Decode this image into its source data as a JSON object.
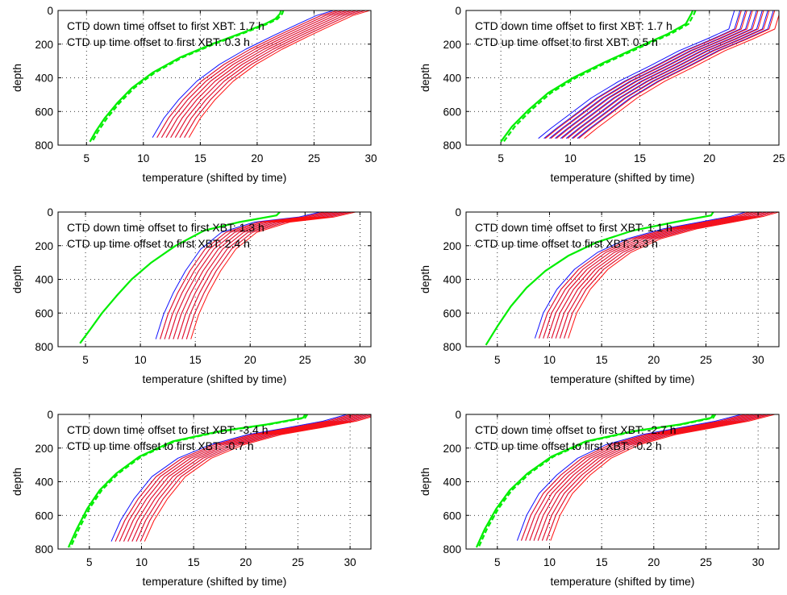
{
  "chart_data": [
    {
      "type": "line",
      "xlabel": "temperature (shifted by time)",
      "ylabel": "depth",
      "xlim": [
        2.5,
        30
      ],
      "ylim": [
        0,
        800
      ],
      "y_direction": "down",
      "xticks": [
        "5",
        "10",
        "15",
        "20",
        "25",
        "30"
      ],
      "yticks": [
        "0",
        "200",
        "400",
        "600",
        "800"
      ],
      "grid": true,
      "annotations": [
        "CTD down time offset to first XBT:    1.7 h",
        "CTD up time offset to first XBT:    0.3 h"
      ],
      "series": [
        {
          "color": "#00ee00",
          "style": "solid",
          "x": [
            22.1,
            22.0,
            21.6,
            20.7,
            18.8,
            16.0,
            13.2,
            10.8,
            9.0,
            7.7,
            6.6,
            5.8,
            5.3
          ],
          "y": [
            0,
            20,
            50,
            80,
            130,
            200,
            280,
            370,
            460,
            550,
            640,
            720,
            780
          ]
        },
        {
          "color": "#00ee00",
          "style": "dashed",
          "x": [
            22.3,
            22.2,
            21.8,
            20.9,
            19.0,
            16.2,
            13.4,
            11.0,
            9.2,
            7.9,
            6.8,
            6.0,
            5.5
          ],
          "y": [
            0,
            20,
            50,
            80,
            130,
            200,
            280,
            370,
            460,
            550,
            640,
            720,
            780
          ]
        },
        {
          "color": "#1010ff",
          "style": "solid",
          "x": [
            28.3,
            26.8,
            25.2,
            23.0,
            20.6,
            18.3,
            16.3,
            14.7,
            13.4,
            12.4
          ],
          "y": [
            0,
            30,
            80,
            150,
            230,
            320,
            420,
            530,
            640,
            755
          ]
        },
        {
          "color": "#ff1010",
          "style": "solid",
          "x": [
            28.7,
            27.2,
            25.6,
            23.4,
            21.0,
            18.7,
            16.7,
            15.1,
            13.8,
            12.8
          ],
          "y": [
            0,
            30,
            80,
            150,
            230,
            320,
            420,
            530,
            640,
            755
          ]
        }
      ]
    },
    {
      "type": "line",
      "xlabel": "temperature (shifted by time)",
      "ylabel": "depth",
      "xlim": [
        2.5,
        25
      ],
      "ylim": [
        0,
        800
      ],
      "y_direction": "down",
      "xticks": [
        "5",
        "10",
        "15",
        "20",
        "25"
      ],
      "yticks": [
        "0",
        "200",
        "400",
        "600",
        "800"
      ],
      "grid": true,
      "annotations": [
        "CTD down time offset to first XBT:    1.7 h",
        "CTD up time offset to first XBT:    0.5 h"
      ],
      "series": [
        {
          "color": "#00ee00",
          "style": "solid",
          "x": [
            18.8,
            18.7,
            18.3,
            17.0,
            14.8,
            12.4,
            10.2,
            8.4,
            7.0,
            5.8,
            5.0
          ],
          "y": [
            0,
            20,
            80,
            140,
            220,
            310,
            400,
            490,
            590,
            690,
            780
          ]
        },
        {
          "color": "#00ee00",
          "style": "dashed",
          "x": [
            19.0,
            18.9,
            18.5,
            17.2,
            15.0,
            12.6,
            10.4,
            8.6,
            7.2,
            6.0,
            5.2
          ],
          "y": [
            0,
            20,
            80,
            140,
            220,
            310,
            400,
            490,
            590,
            690,
            780
          ]
        },
        {
          "color": "#1010ff",
          "style": "solid",
          "x": [
            23.4,
            23.0,
            21.4,
            19.4,
            17.3,
            15.1,
            13.1,
            11.5,
            10.2,
            9.3
          ],
          "y": [
            0,
            110,
            170,
            240,
            330,
            420,
            520,
            620,
            700,
            760
          ]
        },
        {
          "color": "#ff1010",
          "style": "solid",
          "x": [
            23.9,
            23.5,
            21.9,
            19.9,
            17.8,
            15.6,
            13.6,
            12.0,
            10.7,
            9.8
          ],
          "y": [
            0,
            110,
            170,
            240,
            330,
            420,
            520,
            620,
            700,
            760
          ]
        }
      ]
    },
    {
      "type": "line",
      "xlabel": "temperature (shifted by time)",
      "ylabel": "depth",
      "xlim": [
        2.5,
        31
      ],
      "ylim": [
        0,
        800
      ],
      "y_direction": "down",
      "xticks": [
        "5",
        "10",
        "15",
        "20",
        "25",
        "30"
      ],
      "yticks": [
        "0",
        "200",
        "400",
        "600",
        "800"
      ],
      "grid": true,
      "annotations": [
        "CTD down time offset to first XBT:    1.3 h",
        "CTD up time offset to first XBT:    2.4 h"
      ],
      "series": [
        {
          "color": "#00ee00",
          "style": "solid",
          "x": [
            22.7,
            22.4,
            19.0,
            15.8,
            13.2,
            11.0,
            9.2,
            7.8,
            6.5,
            5.4,
            4.5
          ],
          "y": [
            0,
            20,
            60,
            110,
            200,
            300,
            400,
            500,
            600,
            700,
            780
          ]
        },
        {
          "color": "#1010ff",
          "style": "solid",
          "x": [
            28.0,
            26.0,
            22.0,
            19.0,
            17.1,
            15.7,
            14.6,
            13.7,
            13.0
          ],
          "y": [
            0,
            30,
            60,
            120,
            220,
            350,
            480,
            610,
            755
          ]
        },
        {
          "color": "#ff1010",
          "style": "solid",
          "x": [
            28.4,
            26.4,
            22.4,
            19.4,
            17.5,
            16.1,
            15.0,
            14.1,
            13.4
          ],
          "y": [
            0,
            30,
            60,
            120,
            220,
            350,
            480,
            610,
            755
          ]
        }
      ]
    },
    {
      "type": "line",
      "xlabel": "temperature (shifted by time)",
      "ylabel": "depth",
      "xlim": [
        2,
        32
      ],
      "ylim": [
        0,
        800
      ],
      "y_direction": "down",
      "xticks": [
        "5",
        "10",
        "15",
        "20",
        "25",
        "30"
      ],
      "yticks": [
        "0",
        "200",
        "400",
        "600",
        "800"
      ],
      "grid": true,
      "annotations": [
        "CTD down time offset to first XBT:    1.1 h",
        "CTD up time offset to first XBT:    2.3 h"
      ],
      "series": [
        {
          "color": "#00ee00",
          "style": "solid",
          "x": [
            25.7,
            25.5,
            22.0,
            18.0,
            14.5,
            11.8,
            9.6,
            7.8,
            6.3,
            5.0,
            3.9
          ],
          "y": [
            0,
            20,
            60,
            110,
            180,
            260,
            350,
            450,
            560,
            680,
            790
          ]
        },
        {
          "color": "#1010ff",
          "style": "solid",
          "x": [
            30.4,
            29.0,
            26.0,
            22.5,
            19.0,
            16.2,
            14.0,
            12.3,
            11.0,
            10.2
          ],
          "y": [
            0,
            25,
            60,
            100,
            160,
            240,
            340,
            460,
            600,
            750
          ]
        },
        {
          "color": "#ff1010",
          "style": "solid",
          "x": [
            30.8,
            29.4,
            26.4,
            22.9,
            19.4,
            16.6,
            14.4,
            12.7,
            11.4,
            10.6
          ],
          "y": [
            0,
            25,
            60,
            100,
            160,
            240,
            340,
            460,
            600,
            750
          ]
        }
      ]
    },
    {
      "type": "line",
      "xlabel": "temperature (shifted by time)",
      "ylabel": "depth",
      "xlim": [
        2,
        32
      ],
      "ylim": [
        0,
        800
      ],
      "y_direction": "down",
      "xticks": [
        "5",
        "10",
        "15",
        "20",
        "25",
        "30"
      ],
      "yticks": [
        "0",
        "200",
        "400",
        "600",
        "800"
      ],
      "grid": true,
      "annotations": [
        "CTD down time offset to first XBT:    -3.4 h",
        "CTD up time offset to first XBT:    -0.7 h"
      ],
      "series": [
        {
          "color": "#00ee00",
          "style": "solid",
          "x": [
            25.7,
            25.5,
            22.0,
            17.5,
            13.0,
            9.8,
            7.6,
            6.0,
            4.8,
            3.8,
            3.0
          ],
          "y": [
            0,
            20,
            60,
            100,
            160,
            250,
            350,
            450,
            560,
            680,
            790
          ]
        },
        {
          "color": "#00ee00",
          "style": "dashed",
          "x": [
            25.9,
            25.7,
            22.2,
            17.7,
            13.2,
            10.0,
            7.8,
            6.2,
            5.0,
            4.0,
            3.2
          ],
          "y": [
            0,
            20,
            60,
            100,
            160,
            250,
            350,
            450,
            560,
            680,
            790
          ]
        },
        {
          "color": "#1010ff",
          "style": "solid",
          "x": [
            31.3,
            29.0,
            25.5,
            21.8,
            18.2,
            15.1,
            12.6,
            10.9,
            9.6,
            8.7
          ],
          "y": [
            0,
            40,
            80,
            120,
            180,
            260,
            370,
            500,
            630,
            755
          ]
        },
        {
          "color": "#ff1010",
          "style": "solid",
          "x": [
            31.7,
            29.4,
            25.9,
            22.2,
            18.6,
            15.5,
            13.0,
            11.3,
            10.0,
            9.1
          ],
          "y": [
            0,
            40,
            80,
            120,
            180,
            260,
            370,
            500,
            630,
            755
          ]
        }
      ]
    },
    {
      "type": "line",
      "xlabel": "temperature (shifted by time)",
      "ylabel": "depth",
      "xlim": [
        2,
        32
      ],
      "ylim": [
        0,
        800
      ],
      "y_direction": "down",
      "xticks": [
        "5",
        "10",
        "15",
        "20",
        "25",
        "30"
      ],
      "yticks": [
        "0",
        "200",
        "400",
        "600",
        "800"
      ],
      "grid": true,
      "annotations": [
        "CTD down time offset to first XBT:    -2.7 h",
        "CTD up time offset to first XBT:    -0.2 h"
      ],
      "series": [
        {
          "color": "#00ee00",
          "style": "solid",
          "x": [
            25.7,
            25.5,
            22.5,
            18.0,
            13.5,
            10.2,
            7.9,
            6.2,
            4.9,
            3.8,
            3.0
          ],
          "y": [
            0,
            20,
            60,
            100,
            160,
            250,
            350,
            450,
            560,
            680,
            790
          ]
        },
        {
          "color": "#00ee00",
          "style": "dashed",
          "x": [
            25.9,
            25.7,
            22.7,
            18.2,
            13.7,
            10.4,
            8.1,
            6.4,
            5.1,
            4.0,
            3.2
          ],
          "y": [
            0,
            20,
            60,
            100,
            160,
            250,
            350,
            450,
            560,
            680,
            790
          ]
        },
        {
          "color": "#1010ff",
          "style": "solid",
          "x": [
            30.0,
            27.5,
            24.0,
            20.5,
            17.0,
            14.3,
            12.3,
            10.6,
            9.4,
            8.5
          ],
          "y": [
            0,
            40,
            80,
            120,
            180,
            260,
            360,
            470,
            600,
            750
          ]
        },
        {
          "color": "#ff1010",
          "style": "solid",
          "x": [
            30.4,
            27.9,
            24.4,
            20.9,
            17.4,
            14.7,
            12.7,
            11.0,
            9.8,
            8.9
          ],
          "y": [
            0,
            40,
            80,
            120,
            180,
            260,
            360,
            470,
            600,
            750
          ]
        }
      ]
    }
  ]
}
